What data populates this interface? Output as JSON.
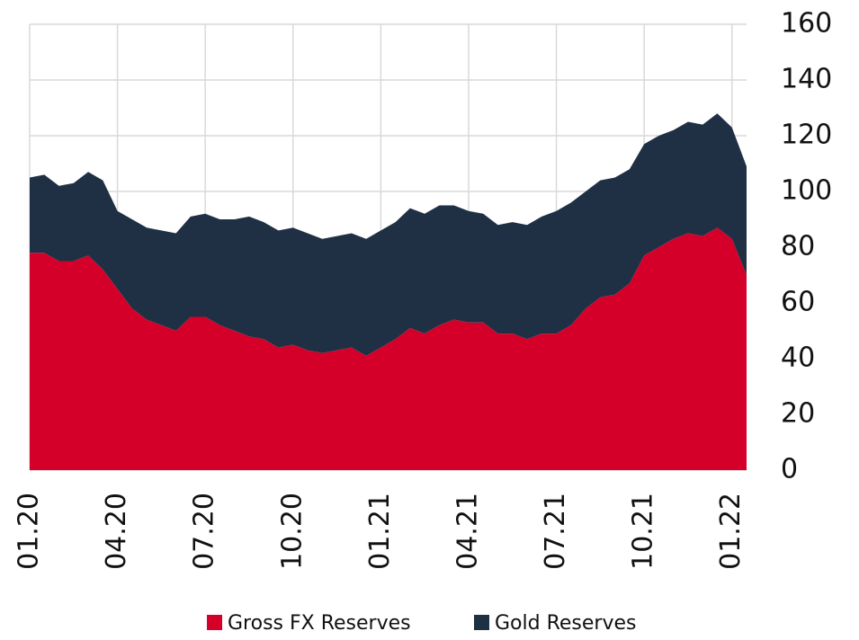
{
  "chart_data": {
    "type": "stacked_area",
    "categories": [
      "01.20",
      null,
      null,
      null,
      null,
      null,
      "04.20",
      null,
      null,
      null,
      null,
      null,
      "07.20",
      null,
      null,
      null,
      null,
      null,
      "10.20",
      null,
      null,
      null,
      null,
      null,
      "01.21",
      null,
      null,
      null,
      null,
      null,
      "04.21",
      null,
      null,
      null,
      null,
      null,
      "07.21",
      null,
      null,
      null,
      null,
      null,
      "10.21",
      null,
      null,
      null,
      null,
      null,
      "01.22",
      null
    ],
    "series": [
      {
        "name": "Gross FX Reserves",
        "color": "#d4002a",
        "values": [
          78,
          78,
          75,
          75,
          77,
          72,
          65,
          58,
          54,
          52,
          50,
          55,
          55,
          52,
          50,
          48,
          47,
          44,
          45,
          43,
          42,
          43,
          44,
          41,
          44,
          47,
          51,
          49,
          52,
          54,
          53,
          53,
          49,
          49,
          47,
          49,
          49,
          52,
          58,
          62,
          63,
          67,
          77,
          80,
          83,
          85,
          84,
          87,
          83,
          70
        ]
      },
      {
        "name": "Gold Reserves",
        "color": "#1f3045",
        "values": [
          27,
          28,
          27,
          28,
          30,
          32,
          28,
          32,
          33,
          34,
          35,
          36,
          37,
          38,
          40,
          43,
          42,
          42,
          42,
          42,
          41,
          41,
          41,
          42,
          42,
          42,
          43,
          43,
          43,
          41,
          40,
          39,
          39,
          40,
          41,
          42,
          44,
          44,
          42,
          42,
          42,
          41,
          40,
          40,
          39,
          40,
          40,
          41,
          40,
          39
        ]
      }
    ],
    "ylim": [
      0,
      160
    ],
    "yticks": [
      0,
      20,
      40,
      60,
      80,
      100,
      120,
      140,
      160
    ],
    "grid": true,
    "legend": "bottom"
  }
}
